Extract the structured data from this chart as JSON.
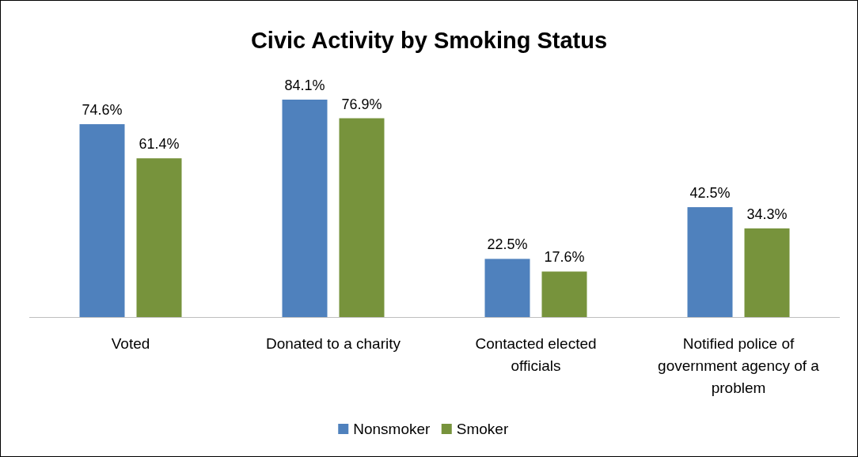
{
  "chart_data": {
    "type": "bar",
    "title": "Civic Activity by Smoking Status",
    "categories": [
      "Voted",
      "Donated to a charity",
      "Contacted elected officials",
      "Notified police of government agency of a problem"
    ],
    "series": [
      {
        "name": "Nonsmoker",
        "color": "#4f81bd",
        "values": [
          74.6,
          84.1,
          22.5,
          42.5
        ],
        "value_labels": [
          "74.6%",
          "84.1%",
          "22.5%",
          "42.5%"
        ]
      },
      {
        "name": "Smoker",
        "color": "#77933c",
        "values": [
          61.4,
          76.9,
          17.6,
          34.3
        ],
        "value_labels": [
          "61.4%",
          "76.9%",
          "17.6%",
          "34.3%"
        ]
      }
    ],
    "legend": "bottom"
  }
}
